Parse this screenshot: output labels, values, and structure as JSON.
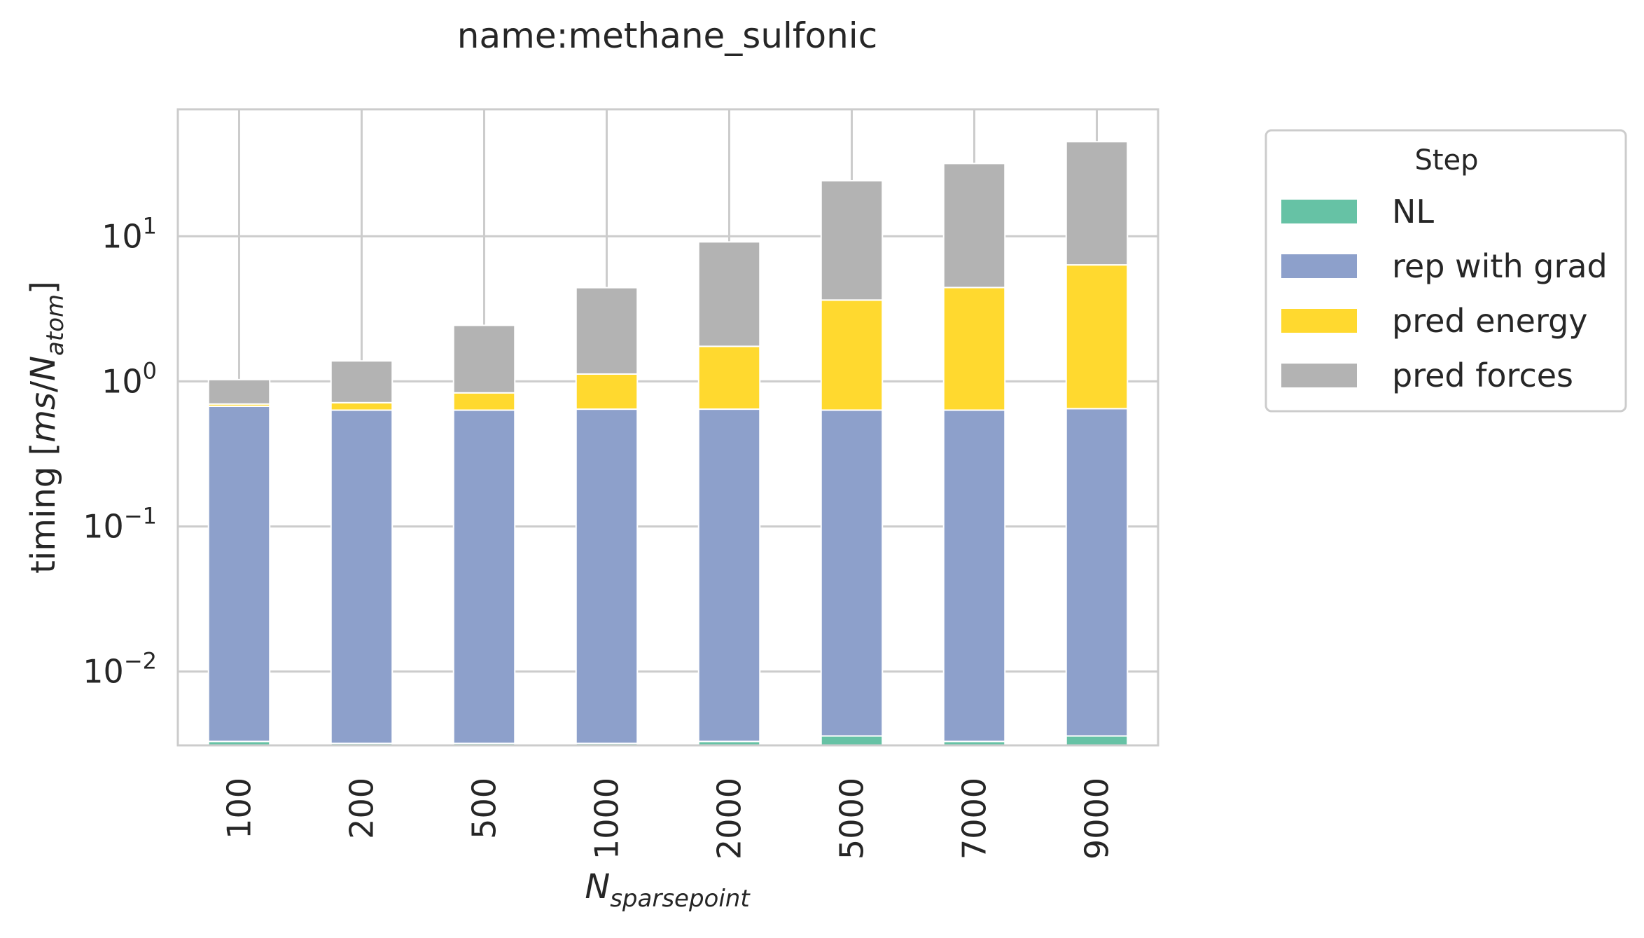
{
  "chart_data": {
    "type": "bar",
    "stacked": true,
    "title": "name:methane_sulfonic",
    "xlabel": "N",
    "xlabel_sub": "sparsepoint",
    "ylabel_prefix": "timing [",
    "ylabel_ms": "ms",
    "ylabel_slash": "/",
    "ylabel_N": "N",
    "ylabel_sub": "atom",
    "ylabel_suffix": "]",
    "yscale": "log",
    "ylim": [
      0.0031,
      75
    ],
    "grid": true,
    "categories": [
      "100",
      "200",
      "500",
      "1000",
      "2000",
      "5000",
      "7000",
      "9000"
    ],
    "yticks": [
      {
        "value": 10,
        "base": "10",
        "exp": "1"
      },
      {
        "value": 1,
        "base": "10",
        "exp": "0"
      },
      {
        "value": 0.1,
        "base": "10",
        "exp": "−1"
      },
      {
        "value": 0.01,
        "base": "10",
        "exp": "−2"
      }
    ],
    "legend_title": "Step",
    "legend_position": "outside-right",
    "series": [
      {
        "name": "NL",
        "color": "#66c2a5",
        "values": [
          0.0033,
          0.0032,
          0.0032,
          0.0032,
          0.0033,
          0.0036,
          0.0033,
          0.0036
        ]
      },
      {
        "name": "rep with grad",
        "color": "#8da0cb",
        "values": [
          0.67,
          0.63,
          0.63,
          0.64,
          0.64,
          0.63,
          0.63,
          0.645
        ]
      },
      {
        "name": "pred energy",
        "color": "#ffd92f",
        "values": [
          0.025,
          0.08,
          0.2,
          0.48,
          1.1,
          3.0,
          3.8,
          5.7
        ]
      },
      {
        "name": "pred forces",
        "color": "#b3b3b3",
        "values": [
          0.33,
          0.67,
          1.6,
          3.3,
          7.4,
          20.5,
          27.3,
          38.5
        ]
      }
    ]
  }
}
